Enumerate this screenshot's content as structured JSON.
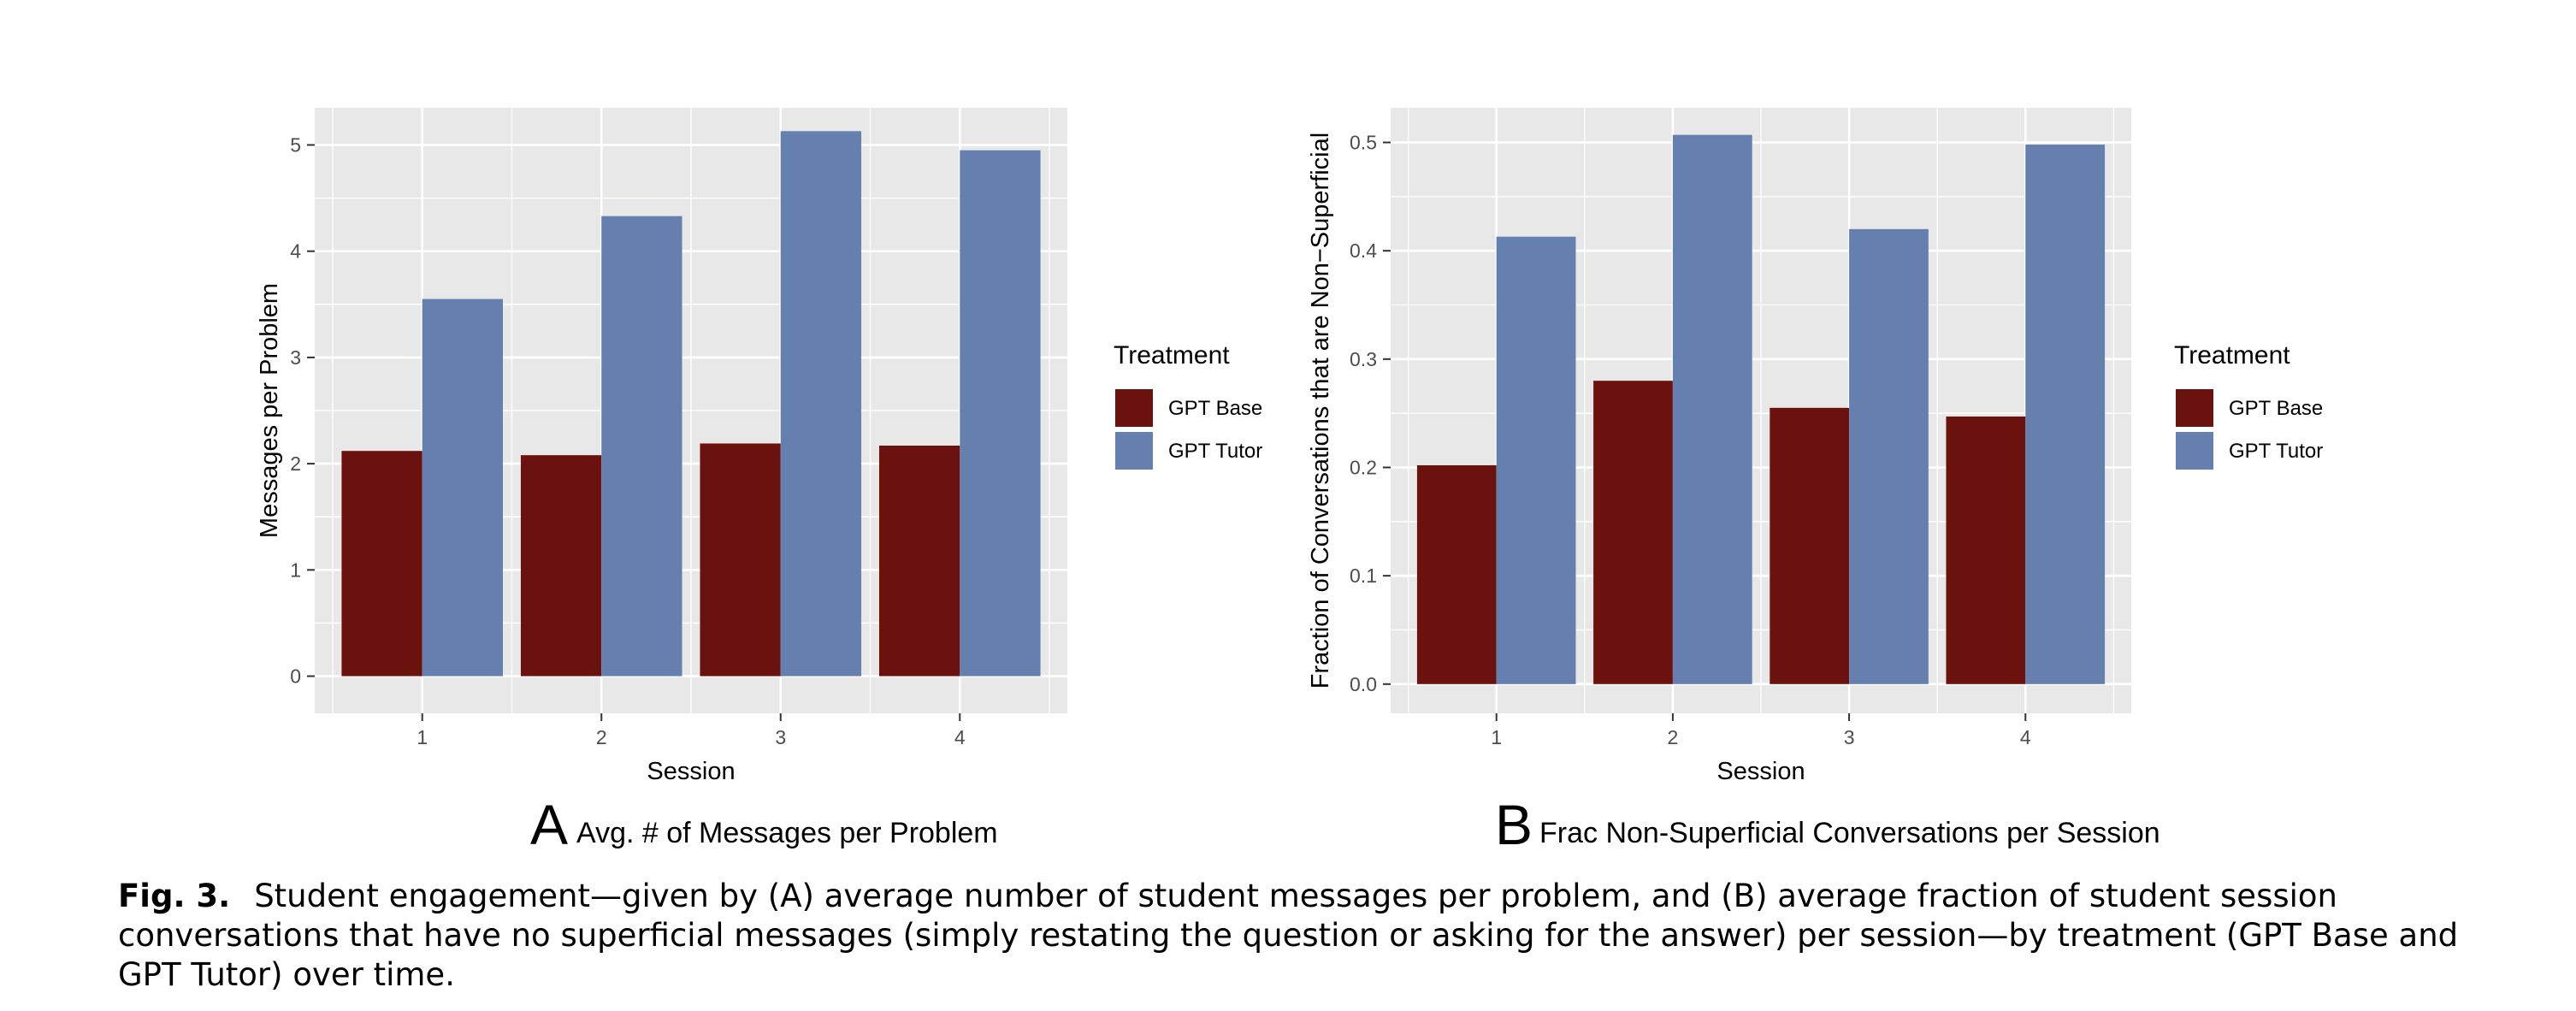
{
  "colors": {
    "panel_bg": "#E8E8E8",
    "grid": "#FFFFFF",
    "gpt_base": "#6B120F",
    "gpt_tutor": "#6580AE"
  },
  "chart_data": [
    {
      "type": "bar",
      "panel_letter": "A",
      "title": "Avg. # of Messages per Problem",
      "xlabel": "Session",
      "ylabel": "Messages per Problem",
      "categories": [
        "1",
        "2",
        "3",
        "4"
      ],
      "ylim": [
        -0.35,
        5.35
      ],
      "yticks": [
        0,
        1,
        2,
        3,
        4,
        5
      ],
      "ytick_labels": [
        "0",
        "1",
        "2",
        "3",
        "4",
        "5"
      ],
      "grid": true,
      "legend": {
        "title": "Treatment",
        "placement": "right"
      },
      "series": [
        {
          "name": "GPT Base",
          "color": "#6B120F",
          "values": [
            2.12,
            2.08,
            2.19,
            2.17
          ]
        },
        {
          "name": "GPT Tutor",
          "color": "#6580AE",
          "values": [
            3.55,
            4.33,
            5.13,
            4.95
          ]
        }
      ]
    },
    {
      "type": "bar",
      "panel_letter": "B",
      "title": "Frac Non-Superficial Conversations per Session",
      "xlabel": "Session",
      "ylabel": "Fraction of Conversations that are Non−Superficial",
      "categories": [
        "1",
        "2",
        "3",
        "4"
      ],
      "ylim": [
        -0.027,
        0.532
      ],
      "yticks": [
        0,
        0.1,
        0.2,
        0.3,
        0.4,
        0.5
      ],
      "ytick_labels": [
        "0.0",
        "0.1",
        "0.2",
        "0.3",
        "0.4",
        "0.5"
      ],
      "grid": true,
      "legend": {
        "title": "Treatment",
        "placement": "right"
      },
      "series": [
        {
          "name": "GPT Base",
          "color": "#6B120F",
          "values": [
            0.202,
            0.28,
            0.255,
            0.247
          ]
        },
        {
          "name": "GPT Tutor",
          "color": "#6580AE",
          "values": [
            0.413,
            0.507,
            0.42,
            0.498
          ]
        }
      ]
    }
  ],
  "caption": {
    "label": "Fig. 3.",
    "text": "Student engagement—given by (A) average number of student messages per problem, and (B) average fraction of student session conversations that have no superficial messages (simply restating the question or asking for the answer) per session—by treatment (GPT Base and GPT Tutor) over time."
  }
}
